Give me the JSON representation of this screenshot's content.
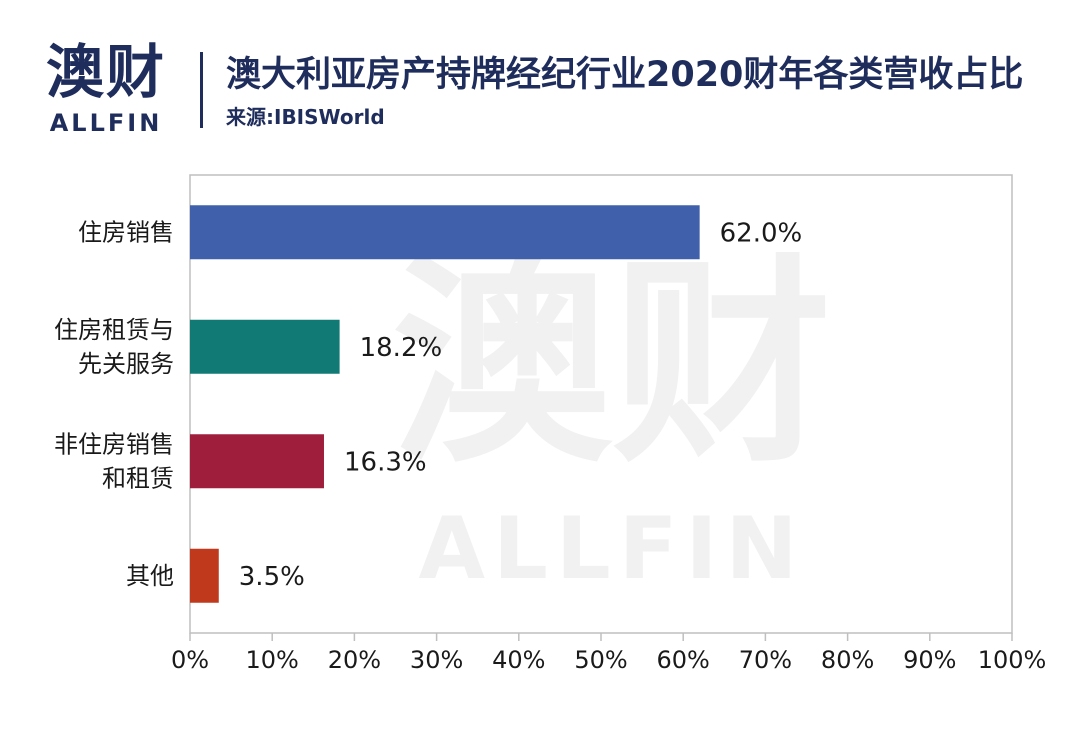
{
  "brand": {
    "name_cn": "澳财",
    "name_en": "ALLFIN"
  },
  "header": {
    "title": "澳大利亚房产持牌经纪行业2020财年各类营收占比",
    "source": "来源:IBISWorld"
  },
  "chart_data": {
    "type": "bar",
    "orientation": "horizontal",
    "categories": [
      [
        "住房销售"
      ],
      [
        "住房租赁与",
        "先关服务"
      ],
      [
        "非住房销售",
        "和租赁"
      ],
      [
        "其他"
      ]
    ],
    "values": [
      62.0,
      18.2,
      16.3,
      3.5
    ],
    "value_labels": [
      "62.0%",
      "18.2%",
      "16.3%",
      "3.5%"
    ],
    "colors": [
      "#4160ab",
      "#117a74",
      "#9f1e3c",
      "#c0391d"
    ],
    "xlim": [
      0,
      100
    ],
    "x_ticks": [
      0,
      10,
      20,
      30,
      40,
      50,
      60,
      70,
      80,
      90,
      100
    ],
    "x_tick_labels": [
      "0%",
      "10%",
      "20%",
      "30%",
      "40%",
      "50%",
      "60%",
      "70%",
      "80%",
      "90%",
      "100%"
    ],
    "grid": false,
    "legend": "none"
  }
}
